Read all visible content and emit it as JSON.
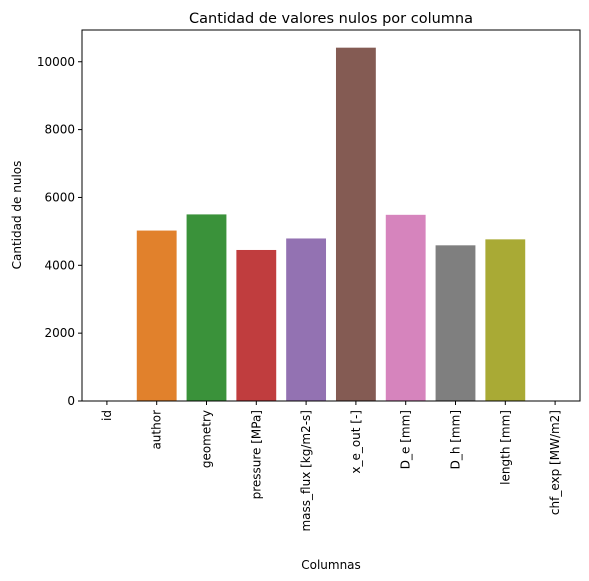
{
  "chart_data": {
    "type": "bar",
    "title": "Cantidad de valores nulos por columna",
    "xlabel": "Columnas",
    "ylabel": "Cantidad de nulos",
    "categories": [
      "id",
      "author",
      "geometry",
      "pressure [MPa]",
      "mass_flux [kg/m2-s]",
      "x_e_out [-]",
      "D_e [mm]",
      "D_h [mm]",
      "length [mm]",
      "chf_exp [MW/m2]"
    ],
    "values": [
      0,
      5024,
      5500,
      4452,
      4791,
      10415,
      5488,
      4589,
      4765,
      0
    ],
    "colors": [
      "#3a75af",
      "#e1812c",
      "#3a923a",
      "#c03d3e",
      "#9372b2",
      "#845b53",
      "#d684bd",
      "#7f7f7f",
      "#a9aa35",
      "#2ebdce"
    ],
    "ylim": [
      0,
      10936
    ],
    "yticks": [
      0,
      2000,
      4000,
      6000,
      8000,
      10000
    ],
    "grid": false,
    "legend": "none"
  }
}
